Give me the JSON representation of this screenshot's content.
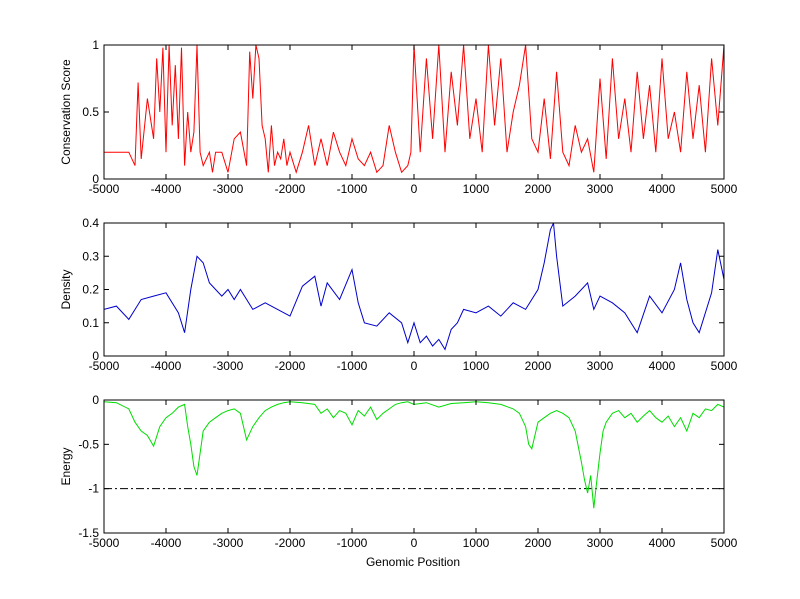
{
  "figure": {
    "xlabel": "Genomic Position"
  },
  "chart_data": [
    {
      "type": "line",
      "ylabel": "Conservation Score",
      "xlim": [
        -5000,
        5000
      ],
      "ylim": [
        0,
        1
      ],
      "x_ticks": [
        -5000,
        -4000,
        -3000,
        -2000,
        -1000,
        0,
        1000,
        2000,
        3000,
        4000,
        5000
      ],
      "y_ticks": [
        0,
        0.5,
        1
      ],
      "x_tick_labels": [
        "-5000",
        "-4000",
        "-3000",
        "-2000",
        "-1000",
        "0",
        "1000",
        "2000",
        "3000",
        "4000",
        "5000"
      ],
      "y_tick_labels": [
        "0",
        "0.5",
        "1"
      ],
      "series": [
        {
          "color": "#ff0000",
          "x": [
            -5000,
            -4800,
            -4600,
            -4500,
            -4450,
            -4400,
            -4300,
            -4200,
            -4150,
            -4100,
            -4050,
            -4000,
            -3950,
            -3900,
            -3850,
            -3800,
            -3750,
            -3700,
            -3650,
            -3600,
            -3550,
            -3500,
            -3450,
            -3400,
            -3350,
            -3300,
            -3250,
            -3200,
            -3100,
            -3000,
            -2900,
            -2800,
            -2700,
            -2650,
            -2600,
            -2550,
            -2500,
            -2450,
            -2400,
            -2350,
            -2300,
            -2250,
            -2200,
            -2150,
            -2100,
            -2050,
            -2000,
            -1900,
            -1800,
            -1700,
            -1600,
            -1500,
            -1400,
            -1300,
            -1200,
            -1100,
            -1000,
            -900,
            -800,
            -700,
            -600,
            -500,
            -400,
            -300,
            -200,
            -100,
            -50,
            0,
            50,
            100,
            200,
            300,
            400,
            500,
            600,
            700,
            800,
            900,
            1000,
            1100,
            1200,
            1300,
            1400,
            1500,
            1600,
            1700,
            1800,
            1900,
            2000,
            2100,
            2200,
            2300,
            2400,
            2500,
            2600,
            2700,
            2800,
            2900,
            3000,
            3100,
            3200,
            3300,
            3400,
            3500,
            3600,
            3700,
            3800,
            3900,
            4000,
            4100,
            4200,
            4300,
            4400,
            4500,
            4600,
            4700,
            4800,
            4900,
            5000
          ],
          "y": [
            0.2,
            0.2,
            0.2,
            0.1,
            0.72,
            0.15,
            0.6,
            0.3,
            0.9,
            0.5,
            0.98,
            0.2,
            1.0,
            0.4,
            0.85,
            0.3,
            0.98,
            0.1,
            0.5,
            0.2,
            0.35,
            1.0,
            0.2,
            0.1,
            0.15,
            0.2,
            0.05,
            0.2,
            0.2,
            0.05,
            0.3,
            0.35,
            0.1,
            0.95,
            0.6,
            1.0,
            0.9,
            0.4,
            0.3,
            0.05,
            0.4,
            0.1,
            0.2,
            0.15,
            0.3,
            0.1,
            0.2,
            0.05,
            0.2,
            0.4,
            0.1,
            0.3,
            0.1,
            0.35,
            0.2,
            0.1,
            0.3,
            0.15,
            0.1,
            0.2,
            0.05,
            0.1,
            0.4,
            0.2,
            0.05,
            0.1,
            0.2,
            1.0,
            0.6,
            0.2,
            0.9,
            0.3,
            1.0,
            0.2,
            0.8,
            0.4,
            1.0,
            0.3,
            0.6,
            0.2,
            1.0,
            0.4,
            0.9,
            0.2,
            0.5,
            0.7,
            1.0,
            0.3,
            0.2,
            0.6,
            0.15,
            0.8,
            0.2,
            0.1,
            0.4,
            0.2,
            0.3,
            0.05,
            0.75,
            0.15,
            0.9,
            0.3,
            0.6,
            0.2,
            0.8,
            0.3,
            0.7,
            0.2,
            0.9,
            0.3,
            0.5,
            0.2,
            0.8,
            0.3,
            0.7,
            0.2,
            0.9,
            0.4,
            1.0
          ]
        }
      ]
    },
    {
      "type": "line",
      "ylabel": "Density",
      "xlim": [
        -5000,
        5000
      ],
      "ylim": [
        0,
        0.4
      ],
      "x_ticks": [
        -5000,
        -4000,
        -3000,
        -2000,
        -1000,
        0,
        1000,
        2000,
        3000,
        4000,
        5000
      ],
      "y_ticks": [
        0,
        0.1,
        0.2,
        0.3,
        0.4
      ],
      "x_tick_labels": [
        "-5000",
        "-4000",
        "-3000",
        "-2000",
        "-1000",
        "0",
        "1000",
        "2000",
        "3000",
        "4000",
        "5000"
      ],
      "y_tick_labels": [
        "0",
        "0.1",
        "0.2",
        "0.3",
        "0.4"
      ],
      "series": [
        {
          "color": "#0000cc",
          "x": [
            -5000,
            -4800,
            -4600,
            -4400,
            -4200,
            -4000,
            -3800,
            -3700,
            -3600,
            -3500,
            -3400,
            -3300,
            -3200,
            -3100,
            -3000,
            -2900,
            -2800,
            -2600,
            -2400,
            -2200,
            -2000,
            -1800,
            -1600,
            -1500,
            -1400,
            -1200,
            -1000,
            -900,
            -800,
            -600,
            -400,
            -200,
            -100,
            0,
            100,
            200,
            300,
            400,
            500,
            600,
            700,
            800,
            1000,
            1200,
            1400,
            1600,
            1800,
            2000,
            2100,
            2200,
            2250,
            2300,
            2400,
            2600,
            2800,
            2900,
            3000,
            3200,
            3400,
            3600,
            3800,
            4000,
            4200,
            4300,
            4400,
            4500,
            4600,
            4800,
            4900,
            5000
          ],
          "y": [
            0.14,
            0.15,
            0.11,
            0.17,
            0.18,
            0.19,
            0.13,
            0.07,
            0.2,
            0.3,
            0.28,
            0.22,
            0.2,
            0.18,
            0.2,
            0.17,
            0.2,
            0.14,
            0.16,
            0.14,
            0.12,
            0.21,
            0.24,
            0.15,
            0.22,
            0.17,
            0.26,
            0.16,
            0.1,
            0.09,
            0.13,
            0.1,
            0.04,
            0.1,
            0.04,
            0.06,
            0.03,
            0.05,
            0.02,
            0.08,
            0.1,
            0.14,
            0.13,
            0.15,
            0.12,
            0.16,
            0.14,
            0.2,
            0.28,
            0.38,
            0.4,
            0.3,
            0.15,
            0.18,
            0.22,
            0.14,
            0.18,
            0.16,
            0.13,
            0.07,
            0.18,
            0.13,
            0.2,
            0.28,
            0.17,
            0.1,
            0.07,
            0.19,
            0.32,
            0.23
          ]
        }
      ]
    },
    {
      "type": "line",
      "ylabel": "Energy",
      "xlim": [
        -5000,
        5000
      ],
      "ylim": [
        -1.5,
        0
      ],
      "x_ticks": [
        -5000,
        -4000,
        -3000,
        -2000,
        -1000,
        0,
        1000,
        2000,
        3000,
        4000,
        5000
      ],
      "y_ticks": [
        -1.5,
        -1,
        -0.5,
        0
      ],
      "x_tick_labels": [
        "-5000",
        "-4000",
        "-3000",
        "-2000",
        "-1000",
        "0",
        "1000",
        "2000",
        "3000",
        "4000",
        "5000"
      ],
      "y_tick_labels": [
        "-1.5",
        "-1",
        "-0.5",
        "0"
      ],
      "threshold": -1,
      "threshold_color": "#000000",
      "series": [
        {
          "color": "#00dd00",
          "x": [
            -5000,
            -4800,
            -4600,
            -4500,
            -4400,
            -4300,
            -4200,
            -4100,
            -4000,
            -3900,
            -3800,
            -3700,
            -3650,
            -3600,
            -3550,
            -3500,
            -3450,
            -3400,
            -3350,
            -3300,
            -3200,
            -3100,
            -3000,
            -2900,
            -2800,
            -2700,
            -2600,
            -2500,
            -2400,
            -2300,
            -2200,
            -2100,
            -2000,
            -1800,
            -1600,
            -1500,
            -1400,
            -1300,
            -1200,
            -1100,
            -1000,
            -900,
            -800,
            -700,
            -600,
            -500,
            -400,
            -300,
            -200,
            -100,
            0,
            200,
            400,
            600,
            800,
            1000,
            1200,
            1400,
            1600,
            1700,
            1800,
            1850,
            1900,
            1950,
            2000,
            2100,
            2200,
            2300,
            2400,
            2500,
            2600,
            2700,
            2750,
            2800,
            2850,
            2900,
            2950,
            3000,
            3050,
            3100,
            3200,
            3300,
            3400,
            3500,
            3600,
            3700,
            3800,
            3900,
            4000,
            4100,
            4200,
            4300,
            4400,
            4500,
            4600,
            4700,
            4800,
            4900,
            5000
          ],
          "y": [
            -0.02,
            -0.03,
            -0.1,
            -0.25,
            -0.35,
            -0.4,
            -0.52,
            -0.3,
            -0.2,
            -0.15,
            -0.08,
            -0.05,
            -0.3,
            -0.5,
            -0.75,
            -0.85,
            -0.6,
            -0.35,
            -0.3,
            -0.25,
            -0.2,
            -0.15,
            -0.12,
            -0.1,
            -0.15,
            -0.45,
            -0.3,
            -0.2,
            -0.12,
            -0.08,
            -0.05,
            -0.03,
            -0.02,
            -0.03,
            -0.05,
            -0.15,
            -0.1,
            -0.2,
            -0.12,
            -0.15,
            -0.28,
            -0.12,
            -0.18,
            -0.08,
            -0.22,
            -0.15,
            -0.1,
            -0.05,
            -0.03,
            -0.02,
            -0.05,
            -0.03,
            -0.08,
            -0.04,
            -0.03,
            -0.02,
            -0.03,
            -0.05,
            -0.1,
            -0.15,
            -0.3,
            -0.5,
            -0.55,
            -0.4,
            -0.25,
            -0.2,
            -0.15,
            -0.12,
            -0.15,
            -0.2,
            -0.35,
            -0.7,
            -0.9,
            -1.05,
            -0.85,
            -1.22,
            -0.9,
            -0.6,
            -0.35,
            -0.25,
            -0.15,
            -0.12,
            -0.2,
            -0.15,
            -0.25,
            -0.18,
            -0.12,
            -0.2,
            -0.25,
            -0.18,
            -0.3,
            -0.2,
            -0.35,
            -0.15,
            -0.2,
            -0.1,
            -0.12,
            -0.05,
            -0.08
          ]
        }
      ]
    }
  ]
}
